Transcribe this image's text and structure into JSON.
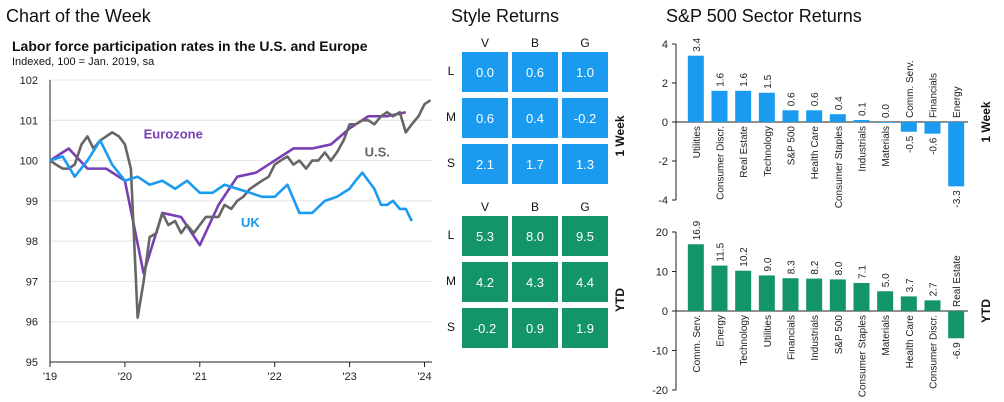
{
  "header": {
    "chart_of_week": "Chart of the Week",
    "style_returns": "Style Returns",
    "sector_returns": "S&P 500 Sector Returns"
  },
  "colors": {
    "blue": "#1a9bef",
    "green": "#14946a",
    "eurozone": "#7a3fb5",
    "us": "#666666",
    "uk": "#1a9bef"
  },
  "style": {
    "columns": [
      "V",
      "B",
      "G"
    ],
    "rows": [
      "L",
      "M",
      "S"
    ],
    "one_week": {
      "label": "1 Week",
      "cells": [
        [
          "0.0",
          "0.6",
          "1.0"
        ],
        [
          "0.6",
          "0.4",
          "-0.2"
        ],
        [
          "2.1",
          "1.7",
          "1.3"
        ]
      ]
    },
    "ytd": {
      "label": "YTD",
      "cells": [
        [
          "5.3",
          "8.0",
          "9.5"
        ],
        [
          "4.2",
          "4.3",
          "4.4"
        ],
        [
          "-0.2",
          "0.9",
          "1.9"
        ]
      ]
    }
  },
  "chart_data": [
    {
      "type": "line",
      "title": "Labor force participation rates in the U.S. and Europe",
      "subtitle": "Indexed, 100 = Jan. 2019, sa",
      "ylim": [
        95,
        102
      ],
      "yticks": [
        "95",
        "96",
        "97",
        "98",
        "99",
        "100",
        "101",
        "102"
      ],
      "xlim": [
        2019,
        2024.1
      ],
      "xticks": [
        {
          "value": 2019,
          "label": "'19"
        },
        {
          "value": 2020,
          "label": "'20"
        },
        {
          "value": 2021,
          "label": "'21"
        },
        {
          "value": 2022,
          "label": "'22"
        },
        {
          "value": 2023,
          "label": "'23"
        },
        {
          "value": 2024,
          "label": "'24"
        }
      ],
      "series": [
        {
          "name": "Eurozone",
          "label": "Eurozone",
          "color": "#7a3fb5",
          "x": [
            2019.0,
            2019.25,
            2019.5,
            2019.75,
            2020.0,
            2020.25,
            2020.5,
            2020.75,
            2021.0,
            2021.25,
            2021.5,
            2021.75,
            2022.0,
            2022.25,
            2022.5,
            2022.75,
            2023.0,
            2023.25,
            2023.5,
            2023.75
          ],
          "y": [
            100.0,
            100.3,
            99.8,
            99.8,
            99.5,
            97.2,
            98.7,
            98.6,
            97.9,
            98.9,
            99.6,
            99.7,
            100.0,
            100.3,
            100.3,
            100.4,
            100.8,
            101.1,
            101.1,
            101.2
          ]
        },
        {
          "name": "U.S.",
          "label": "U.S.",
          "color": "#666666",
          "x": [
            2019.0,
            2019.08,
            2019.17,
            2019.25,
            2019.33,
            2019.42,
            2019.5,
            2019.58,
            2019.67,
            2019.75,
            2019.83,
            2019.92,
            2020.0,
            2020.08,
            2020.17,
            2020.25,
            2020.33,
            2020.42,
            2020.5,
            2020.58,
            2020.67,
            2020.75,
            2020.83,
            2020.92,
            2021.0,
            2021.08,
            2021.17,
            2021.25,
            2021.33,
            2021.42,
            2021.5,
            2021.58,
            2021.67,
            2021.75,
            2021.83,
            2021.92,
            2022.0,
            2022.08,
            2022.17,
            2022.25,
            2022.33,
            2022.42,
            2022.5,
            2022.58,
            2022.67,
            2022.75,
            2022.83,
            2022.92,
            2023.0,
            2023.08,
            2023.17,
            2023.25,
            2023.33,
            2023.42,
            2023.5,
            2023.58,
            2023.67,
            2023.75,
            2023.83,
            2023.92,
            2024.0,
            2024.08
          ],
          "y": [
            100.0,
            99.9,
            99.8,
            99.8,
            99.9,
            100.4,
            100.6,
            100.3,
            100.5,
            100.6,
            100.7,
            100.6,
            100.4,
            99.8,
            96.1,
            97.0,
            98.1,
            98.2,
            98.7,
            98.4,
            98.5,
            98.2,
            98.4,
            98.2,
            98.4,
            98.6,
            98.6,
            98.6,
            98.9,
            98.8,
            99.0,
            99.1,
            99.3,
            99.4,
            99.5,
            99.6,
            99.9,
            100.0,
            100.1,
            99.9,
            100.0,
            99.8,
            100.0,
            100.0,
            100.2,
            100.0,
            100.2,
            100.5,
            100.9,
            100.9,
            101.0,
            101.0,
            100.9,
            101.1,
            101.2,
            101.1,
            101.2,
            100.7,
            100.9,
            101.1,
            101.4,
            101.5
          ]
        },
        {
          "name": "UK",
          "label": "UK",
          "color": "#1a9bef",
          "x": [
            2019.0,
            2019.17,
            2019.33,
            2019.5,
            2019.67,
            2019.83,
            2020.0,
            2020.17,
            2020.33,
            2020.5,
            2020.67,
            2020.83,
            2021.0,
            2021.17,
            2021.33,
            2021.5,
            2021.67,
            2021.83,
            2022.0,
            2022.17,
            2022.33,
            2022.5,
            2022.67,
            2022.83,
            2023.0,
            2023.08,
            2023.17,
            2023.25,
            2023.33,
            2023.42,
            2023.5,
            2023.58,
            2023.67,
            2023.75,
            2023.83
          ],
          "y": [
            100.0,
            100.1,
            99.6,
            100.0,
            100.5,
            99.9,
            99.5,
            99.6,
            99.4,
            99.5,
            99.3,
            99.5,
            99.2,
            99.2,
            99.4,
            99.3,
            99.2,
            99.1,
            99.1,
            99.4,
            98.7,
            98.7,
            99.0,
            99.1,
            99.3,
            99.5,
            99.7,
            99.5,
            99.3,
            98.9,
            98.9,
            99.0,
            98.8,
            98.8,
            98.5
          ]
        }
      ]
    },
    {
      "type": "bar",
      "title": "1 Week",
      "ylim": [
        -4,
        4
      ],
      "yticks": [
        "-4",
        "-2",
        "0",
        "2",
        "4"
      ],
      "categories": [
        "Utilities",
        "Consumer Discr.",
        "Real Estate",
        "Technology",
        "S&P 500",
        "Health Care",
        "Consumer Staples",
        "Industrials",
        "Materials",
        "Comm. Serv.",
        "Financials",
        "Energy"
      ],
      "values": [
        3.4,
        1.6,
        1.6,
        1.5,
        0.6,
        0.6,
        0.4,
        0.1,
        0.0,
        -0.5,
        -0.6,
        -3.3
      ],
      "value_labels": [
        "3.4",
        "1.6",
        "1.6",
        "1.5",
        "0.6",
        "0.6",
        "0.4",
        "0.1",
        "0.0",
        "-0.5",
        "-0.6",
        "-3.3"
      ]
    },
    {
      "type": "bar",
      "title": "YTD",
      "ylim": [
        -20,
        20
      ],
      "yticks": [
        "-20",
        "-10",
        "0",
        "10",
        "20"
      ],
      "categories": [
        "Comm. Serv.",
        "Energy",
        "Technology",
        "Utilities",
        "Financials",
        "Industrials",
        "S&P 500",
        "Consumer Staples",
        "Materials",
        "Health Care",
        "Consumer Discr.",
        "Real Estate"
      ],
      "values": [
        16.9,
        11.5,
        10.2,
        9.0,
        8.3,
        8.2,
        8.0,
        7.1,
        5.0,
        3.7,
        2.7,
        -6.9
      ],
      "value_labels": [
        "16.9",
        "11.5",
        "10.2",
        "9.0",
        "8.3",
        "8.2",
        "8.0",
        "7.1",
        "5.0",
        "3.7",
        "2.7",
        "-6.9"
      ]
    }
  ]
}
